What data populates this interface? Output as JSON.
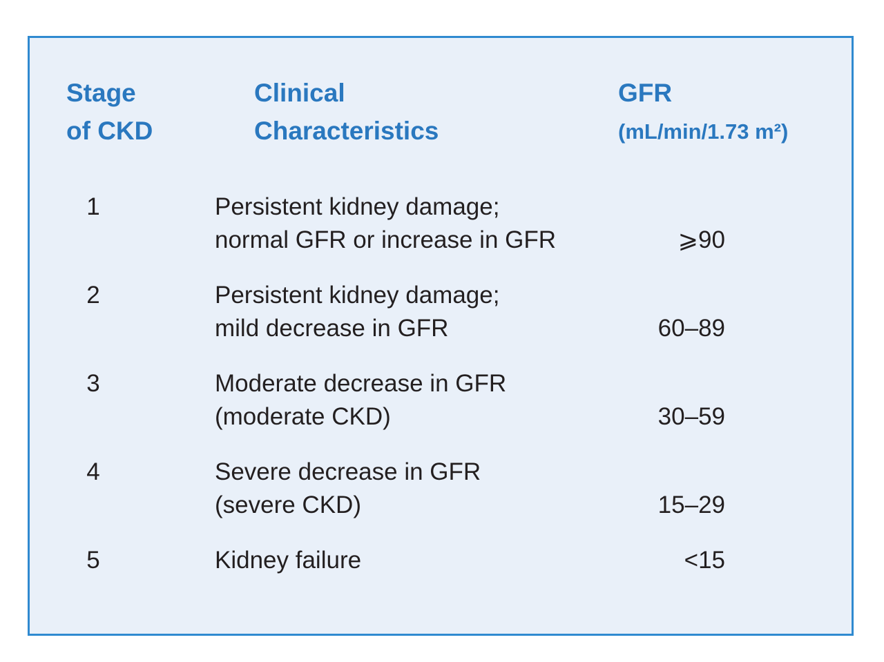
{
  "table": {
    "header": [
      [
        "Stage",
        "of CKD"
      ],
      [
        "Clinical",
        "Characteristics"
      ],
      [
        "GFR",
        "(mL/min/1.73 m²)"
      ]
    ],
    "rows": [
      [
        "1",
        [
          "Persistent kidney damage;",
          "normal GFR or increase in GFR"
        ],
        "⩾90"
      ],
      [
        "2",
        [
          "Persistent kidney damage;",
          "mild decrease in GFR"
        ],
        "60–89"
      ],
      [
        "3",
        [
          "Moderate decrease in GFR",
          "(moderate CKD)"
        ],
        "30–59"
      ],
      [
        "4",
        [
          "Severe decrease in GFR",
          "(severe CKD)"
        ],
        "15–29"
      ],
      [
        "5",
        [
          "Kidney failure"
        ],
        "<15"
      ]
    ]
  }
}
